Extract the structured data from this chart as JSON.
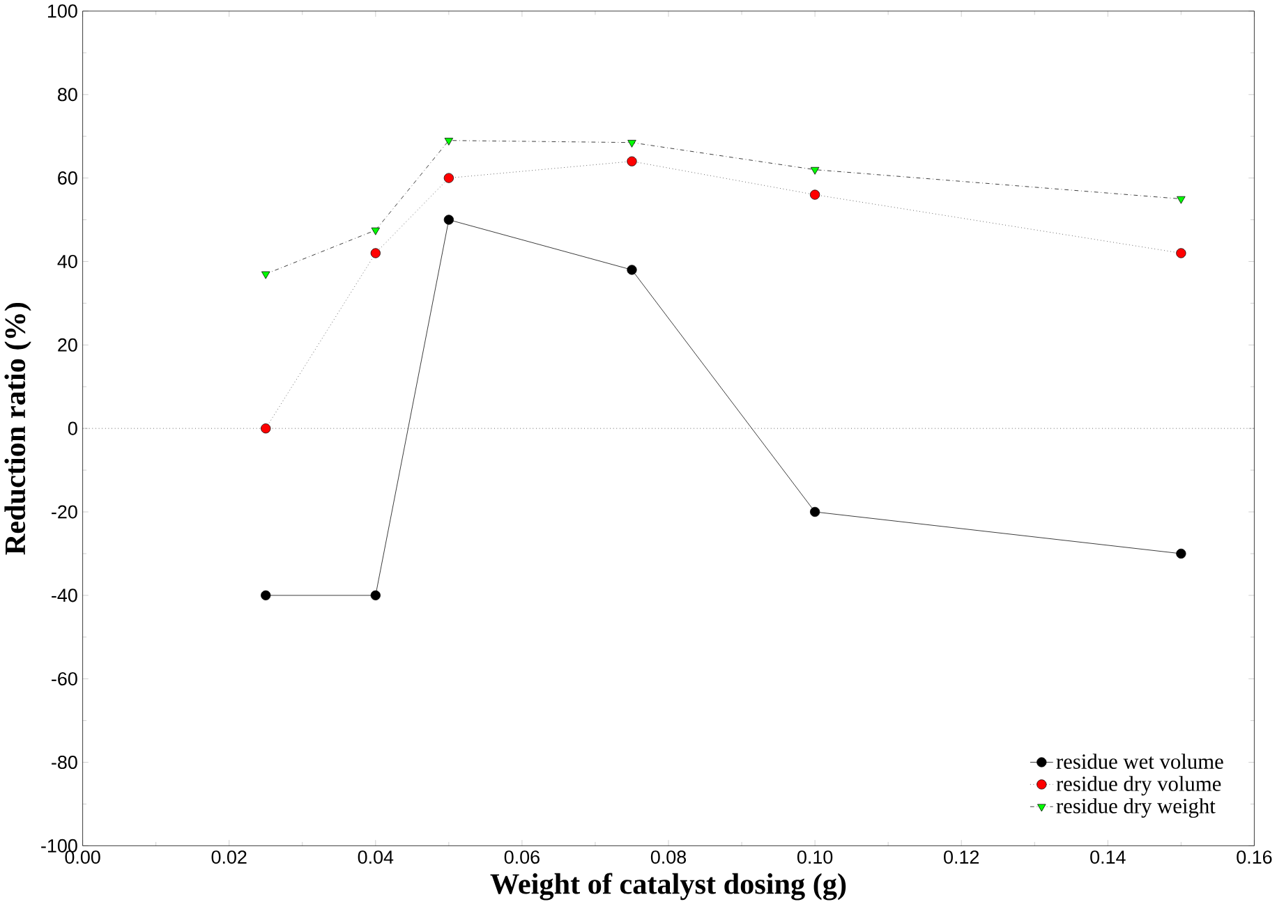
{
  "chart_data": {
    "type": "line",
    "xlabel": "Weight of catalyst dosing (g)",
    "ylabel": "Reduction ratio (%)",
    "x": [
      0.025,
      0.04,
      0.05,
      0.075,
      0.1,
      0.15
    ],
    "series": [
      {
        "name": "residue wet volume",
        "color": "#000000",
        "marker": "circle",
        "line_style": "solid",
        "values": [
          -40,
          -40,
          50,
          38,
          -20,
          -30
        ]
      },
      {
        "name": "residue dry volume",
        "color": "#ff0000",
        "marker": "circle",
        "line_style": "dotted",
        "values": [
          0,
          42,
          60,
          64,
          56,
          42
        ]
      },
      {
        "name": "residue dry weight",
        "color": "#00ff00",
        "marker": "triangle",
        "line_style": "dashed",
        "values": [
          37,
          47.5,
          69,
          68.5,
          62,
          55
        ]
      }
    ],
    "xlim": [
      0,
      0.16
    ],
    "xticks": [
      {
        "value": 0,
        "label": "0.00"
      },
      {
        "value": 0.02,
        "label": "0.02"
      },
      {
        "value": 0.04,
        "label": "0.04"
      },
      {
        "value": 0.06,
        "label": "0.06"
      },
      {
        "value": 0.08,
        "label": "0.08"
      },
      {
        "value": 0.1,
        "label": "0.10"
      },
      {
        "value": 0.12,
        "label": "0.12"
      },
      {
        "value": 0.14,
        "label": "0.14"
      },
      {
        "value": 0.16,
        "label": "0.16"
      }
    ],
    "ylim": [
      -100,
      100
    ],
    "yticks": [
      -100,
      -80,
      -60,
      -40,
      -20,
      0,
      20,
      40,
      60,
      80,
      100
    ],
    "ref_lines": [
      {
        "axis": "y",
        "value": 0,
        "line_style": "dotted",
        "color": "#000000"
      }
    ],
    "legend": "bottom right",
    "grid": false
  }
}
